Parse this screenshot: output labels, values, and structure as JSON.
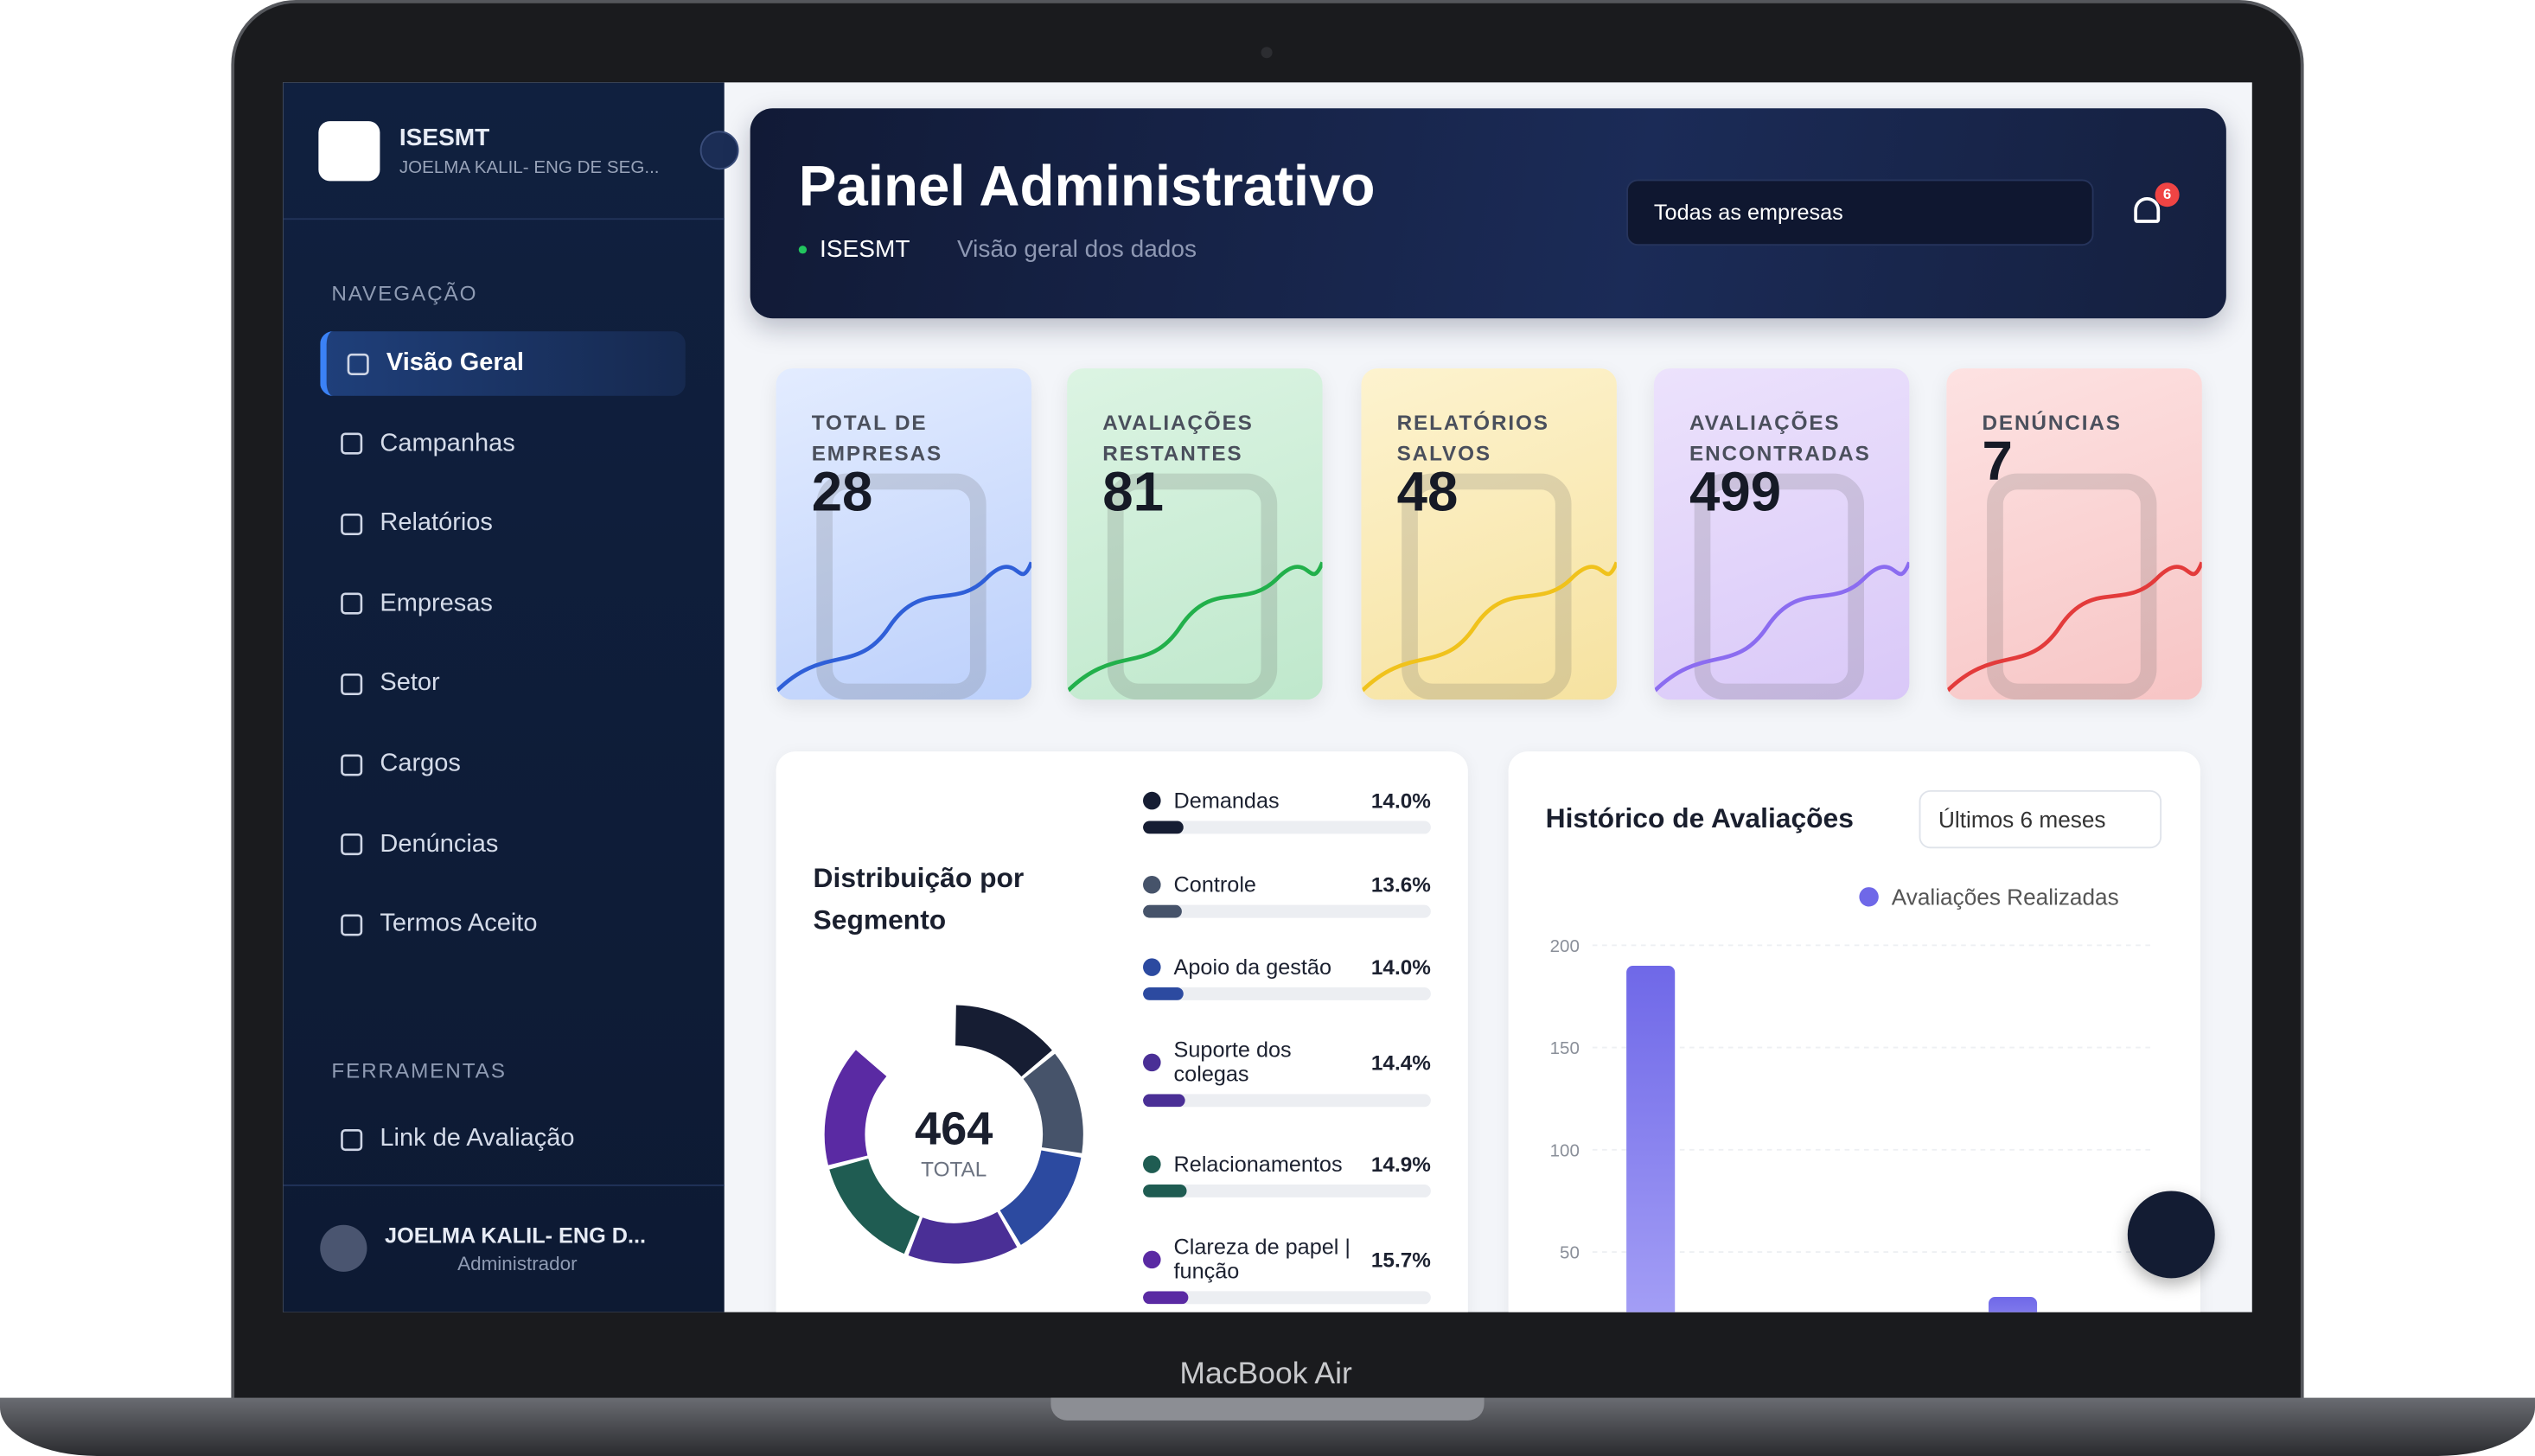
{
  "sidebar": {
    "brand": "ISESMT",
    "user_short": "JOELMA KALIL- ENG DE SEG...",
    "nav_title": "NAVEGAÇÃO",
    "nav": [
      "Visão Geral",
      "Campanhas",
      "Relatórios",
      "Empresas",
      "Setor",
      "Cargos",
      "Denúncias",
      "Termos Aceito"
    ],
    "tools_title": "FERRAMENTAS",
    "tools": [
      "Link de Avaliação"
    ],
    "user_name": "JOELMA KALIL- ENG D...",
    "user_role": "Administrador"
  },
  "header": {
    "title": "Painel Administrativo",
    "crumb": "ISESMT",
    "subtitle": "Visão geral dos dados",
    "select": "Todas as empresas",
    "badge": "6"
  },
  "stats": [
    {
      "label": "TOTAL DE EMPRESAS",
      "value": "28"
    },
    {
      "label": "AVALIAÇÕES RESTANTES",
      "value": "81"
    },
    {
      "label": "RELATÓRIOS SALVOS",
      "value": "48"
    },
    {
      "label": "AVALIAÇÕES ENCONTRADAS",
      "value": "499"
    },
    {
      "label": "DENÚNCIAS",
      "value": "7"
    }
  ],
  "segments": {
    "title": "Distribuição por Segmento",
    "total": "464",
    "total_label": "TOTAL",
    "items": [
      {
        "name": "Demandas",
        "value": 14.0,
        "label": "14.0%",
        "color": "#161d33"
      },
      {
        "name": "Controle",
        "value": 13.6,
        "label": "13.6%",
        "color": "#46536a"
      },
      {
        "name": "Apoio da gestão",
        "value": 14.0,
        "label": "14.0%",
        "color": "#2c4aa0"
      },
      {
        "name": "Suporte dos colegas",
        "value": 14.4,
        "label": "14.4%",
        "color": "#4a2f96"
      },
      {
        "name": "Relacionamentos",
        "value": 14.9,
        "label": "14.9%",
        "color": "#1f5c52"
      },
      {
        "name": "Clareza de papel | função",
        "value": 15.7,
        "label": "15.7%",
        "color": "#5a2aa3"
      }
    ]
  },
  "history": {
    "title": "Histórico de Avaliações",
    "period": "Últimos 6 meses",
    "chart": {
      "type": "bar",
      "series_name": "Avaliações Realizadas",
      "color": "#6f68e8",
      "categories": [
        null,
        null
      ],
      "values": [
        190,
        28
      ],
      "ylim": [
        0,
        200
      ],
      "yticks": [
        50,
        100,
        150,
        200
      ]
    }
  },
  "device": "MacBook Air"
}
